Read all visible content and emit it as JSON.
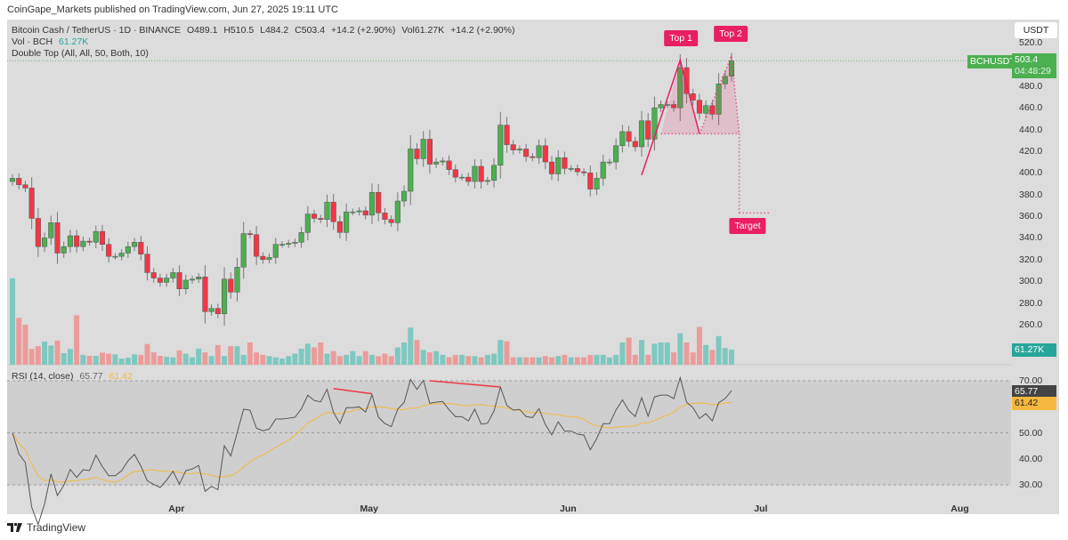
{
  "publisher": "CoinGape_Markets published on TradingView.com, Jun 27, 2025 19:11 UTC",
  "legend": {
    "symbol": "Bitcoin Cash / TetherUS · 1D · BINANCE",
    "open": "O489.1",
    "high": "H510.5",
    "low": "L484.2",
    "close": "C503.4",
    "change": "+14.2 (+2.90%)",
    "vol": "Vol61.27K",
    "change2": "+14.2 (+2.90%)",
    "vol_label": "Vol · BCH",
    "vol_value": "61.27K",
    "indicator": "Double Top (All, All, 50, Both, 10)",
    "rsi_label": "RSI (14, close)",
    "rsi_value": "65.77",
    "rsi_ma_value": "61.42"
  },
  "currency_button": "USDT",
  "price_tags": {
    "symbol": "BCHUSDT",
    "last_price": "503.4",
    "countdown": "04:48:29",
    "volume": "61.27K",
    "rsi": "65.77",
    "rsi_ma": "61.42"
  },
  "pattern_labels": {
    "top1": "Top 1",
    "top2": "Top 2",
    "target": "Target"
  },
  "branding": "TradingView",
  "colors": {
    "up": "#4caf50",
    "down": "#f23645",
    "vol_up": "#7ec8c0",
    "vol_down": "#eb9c9a",
    "pattern": "#e91e63",
    "rsi": "#555555",
    "rsi_ma": "#f5b83d",
    "background": "#dcdcdc"
  },
  "chart_data": {
    "type": "candlestick",
    "interval": "1D",
    "first_date": "2025-03-07",
    "last_date": "2025-06-27",
    "price_axis": {
      "ticks": [
        520,
        500,
        480,
        460,
        440,
        420,
        400,
        380,
        360,
        340,
        320,
        300,
        280,
        260
      ],
      "labels": [
        "520.0",
        "480.0",
        "460.0",
        "440.0",
        "420.0",
        "400.0",
        "380.0",
        "360.0",
        "340.0",
        "320.0",
        "300.0",
        "280.0",
        "260.0"
      ]
    },
    "time_axis": [
      {
        "label": "Apr",
        "date": "2025-04-01"
      },
      {
        "label": "May",
        "date": "2025-05-01"
      },
      {
        "label": "Jun",
        "date": "2025-06-01"
      },
      {
        "label": "Jul",
        "date": "2025-07-01"
      },
      {
        "label": "Aug",
        "date": "2025-08-01"
      }
    ],
    "first_open": 392,
    "close": [
      395,
      389,
      386,
      358,
      332,
      340,
      354,
      326,
      332,
      342,
      332,
      337,
      336,
      346,
      334,
      323,
      323,
      326,
      332,
      336,
      325,
      308,
      303,
      299,
      303,
      308,
      293,
      301,
      302,
      304,
      272,
      275,
      270,
      302,
      290,
      313,
      344,
      343,
      323,
      320,
      322,
      334,
      334,
      335,
      336,
      345,
      362,
      358,
      357,
      373,
      355,
      345,
      364,
      364,
      365,
      361,
      382,
      363,
      357,
      354,
      374,
      383,
      422,
      413,
      431,
      408,
      410,
      411,
      403,
      396,
      396,
      392,
      406,
      392,
      393,
      407,
      444,
      426,
      421,
      422,
      415,
      414,
      425,
      410,
      399,
      414,
      404,
      404,
      401,
      400,
      385,
      395,
      410,
      410,
      425,
      438,
      429,
      424,
      448,
      431,
      460,
      463,
      463,
      460,
      497,
      473,
      467,
      455,
      462,
      454,
      482,
      489,
      503.4
    ],
    "volume_k": [
      350,
      190,
      162,
      64,
      75,
      94,
      78,
      98,
      47,
      64,
      200,
      40,
      36,
      36,
      49,
      45,
      42,
      25,
      29,
      42,
      40,
      84,
      50,
      36,
      32,
      30,
      58,
      45,
      30,
      65,
      50,
      35,
      80,
      35,
      75,
      75,
      40,
      90,
      50,
      40,
      35,
      30,
      25,
      35,
      45,
      65,
      85,
      70,
      90,
      45,
      55,
      35,
      40,
      55,
      35,
      55,
      40,
      35,
      45,
      35,
      70,
      90,
      150,
      100,
      60,
      50,
      55,
      40,
      30,
      40,
      40,
      35,
      35,
      30,
      40,
      45,
      100,
      95,
      30,
      30,
      30,
      30,
      30,
      35,
      30,
      35,
      40,
      30,
      30,
      30,
      40,
      40,
      40,
      30,
      40,
      90,
      110,
      40,
      100,
      40,
      85,
      90,
      90,
      50,
      128,
      90,
      50,
      153,
      80,
      60,
      116,
      68,
      61.27
    ],
    "last_ohlc": {
      "open": 489.1,
      "high": 510.5,
      "low": 484.2,
      "close": 503.4
    },
    "double_top": {
      "points": [
        {
          "candle": 99,
          "price": 398
        },
        {
          "candle": 105,
          "price": 504
        },
        {
          "candle": 108,
          "price": 436
        },
        {
          "candle": 113,
          "price": 508
        }
      ],
      "neckline": 436,
      "target": 363
    },
    "rsi": {
      "period": 14,
      "ma_period": 14,
      "ticks": [
        "70.00",
        "50.00",
        "40.00",
        "30.00"
      ],
      "tick_values": [
        70,
        50,
        40,
        30
      ],
      "band": [
        30,
        70
      ],
      "last": 65.77,
      "last_ma": 61.42,
      "divergence_lines": [
        [
          {
            "candle": 51,
            "rsi": 67
          },
          {
            "candle": 57,
            "rsi": 65
          }
        ],
        [
          {
            "candle": 66,
            "rsi": 70
          },
          {
            "candle": 77,
            "rsi": 67.6
          }
        ]
      ]
    }
  }
}
